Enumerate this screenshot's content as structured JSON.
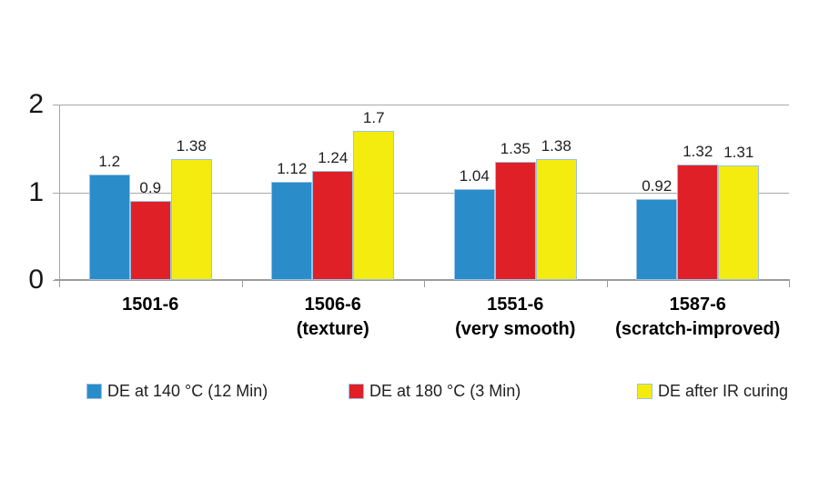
{
  "chart_data": {
    "type": "bar",
    "title": "",
    "xlabel": "",
    "ylabel": "",
    "categories": [
      {
        "lines": [
          "1501-6"
        ]
      },
      {
        "lines": [
          "1506-6",
          "(texture)"
        ]
      },
      {
        "lines": [
          "1551-6",
          "(very smooth)"
        ]
      },
      {
        "lines": [
          "1587-6",
          "(scratch-improved)"
        ]
      }
    ],
    "series": [
      {
        "name": "DE at 140 °C (12 Min)",
        "color": "#2b8cca",
        "values": [
          1.2,
          1.12,
          1.04,
          0.92
        ],
        "value_labels": [
          "1.2",
          "1.12",
          "1.04",
          "0.92"
        ]
      },
      {
        "name": "DE at 180 °C (3 Min)",
        "color": "#e02027",
        "values": [
          0.9,
          1.24,
          1.35,
          1.32
        ],
        "value_labels": [
          "0.9",
          "1.24",
          "1.35",
          "1.32"
        ]
      },
      {
        "name": "DE after IR curing",
        "color": "#f4eb0f",
        "values": [
          1.38,
          1.7,
          1.38,
          1.31
        ],
        "value_labels": [
          "1.38",
          "1.7",
          "1.38",
          "1.31"
        ]
      }
    ],
    "y_axis": {
      "min": 0,
      "max": 2,
      "tick_values": [
        0,
        1,
        2
      ],
      "tick_labels": [
        "0",
        "1",
        "2"
      ]
    },
    "grid": true,
    "legend_position": "bottom",
    "colors": {
      "axis": "#a8a8a8",
      "bar_border": "#9cc2e5",
      "value_text": "#1f1f1f",
      "category_text": "#000000"
    }
  }
}
